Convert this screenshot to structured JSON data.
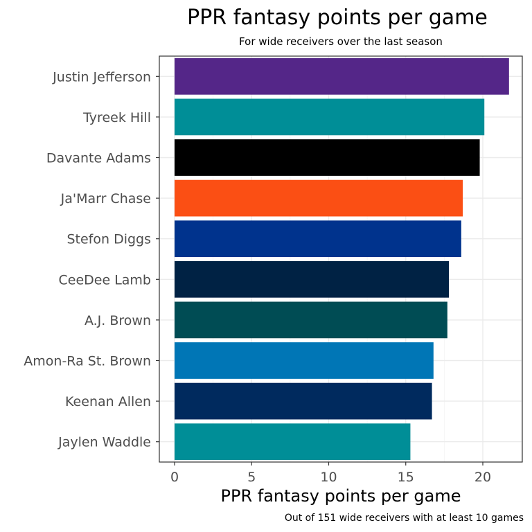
{
  "chart_data": {
    "type": "bar",
    "orientation": "horizontal",
    "title": "PPR fantasy points per game",
    "subtitle": "For wide receivers over the last season",
    "caption": "Out of 151 wide receivers with at least 10 games",
    "xlabel": "PPR fantasy points per game",
    "ylabel": "",
    "xlim": [
      0,
      22
    ],
    "x_ticks": [
      0,
      5,
      10,
      15,
      20
    ],
    "grid": true,
    "legend": "none",
    "categories": [
      "Justin Jefferson",
      "Tyreek Hill",
      "Davante Adams",
      "Ja'Marr Chase",
      "Stefon Diggs",
      "CeeDee Lamb",
      "A.J. Brown",
      "Amon-Ra St. Brown",
      "Keenan Allen",
      "Jaylen Waddle"
    ],
    "values": [
      21.7,
      20.1,
      19.8,
      18.7,
      18.6,
      17.8,
      17.7,
      16.8,
      16.7,
      15.3
    ],
    "colors": [
      "#542688",
      "#008E97",
      "#000000",
      "#FB4F14",
      "#00338D",
      "#002244",
      "#004C54",
      "#0076B6",
      "#002A5E",
      "#008E97"
    ]
  }
}
